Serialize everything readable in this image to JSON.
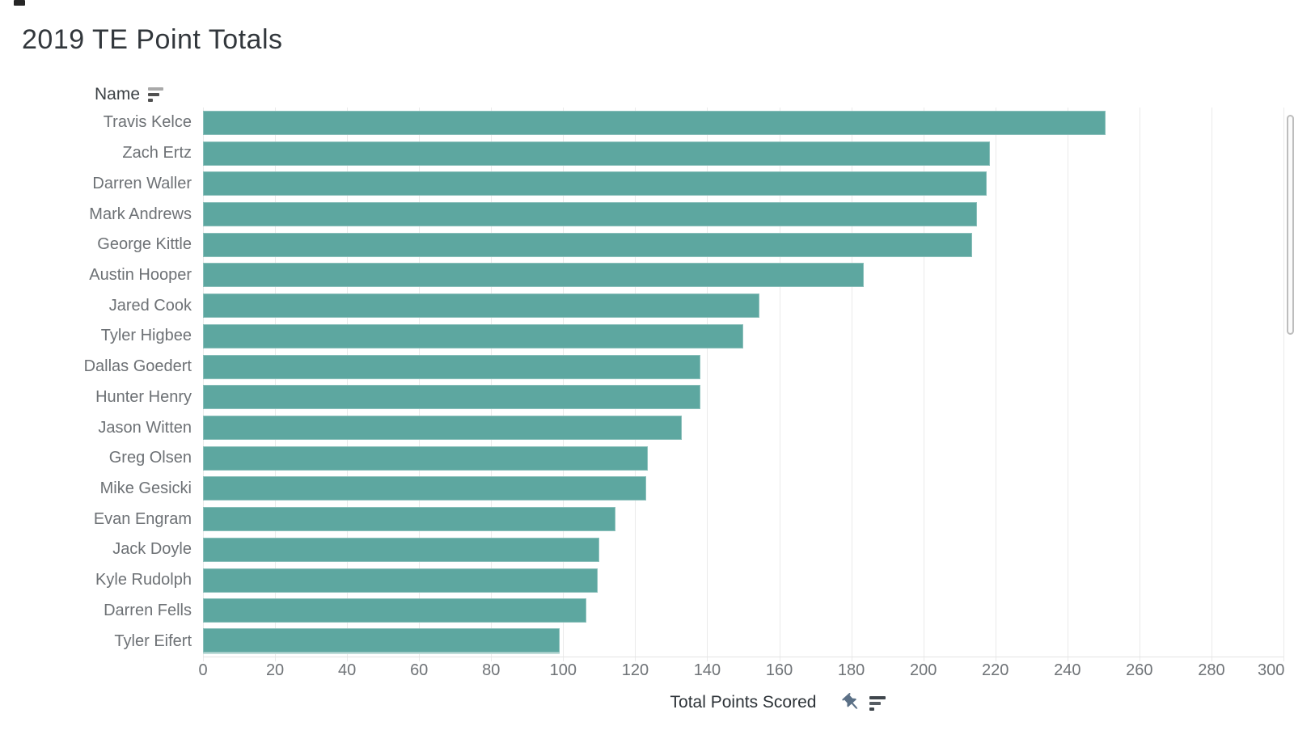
{
  "title": "2019 TE Point Totals",
  "row_header": {
    "label": "Name",
    "sort_icon": "sort-descending-icon"
  },
  "x_axis": {
    "label": "Total Points Scored",
    "ticks": [
      0,
      20,
      40,
      60,
      80,
      100,
      120,
      140,
      160,
      180,
      200,
      220,
      240,
      260,
      280,
      300
    ],
    "max": 300,
    "icons": [
      "pin-icon",
      "sort-descending-icon"
    ]
  },
  "colors": {
    "bar": "#5da7a0",
    "gridline": "#eaeaea",
    "title_text": "#32373c",
    "label_text": "#6d7175",
    "pin_icon": "#5b7086"
  },
  "scrollbar": {
    "visible": true,
    "side": "right"
  },
  "chart_data": {
    "type": "bar",
    "orientation": "horizontal",
    "title": "2019 TE Point Totals",
    "xlabel": "Total Points Scored",
    "ylabel": "Name",
    "xlim": [
      0,
      300
    ],
    "grid": true,
    "legend": false,
    "sort": "descending",
    "categories": [
      "Travis Kelce",
      "Zach Ertz",
      "Darren Waller",
      "Mark Andrews",
      "George Kittle",
      "Austin Hooper",
      "Jared Cook",
      "Tyler Higbee",
      "Dallas Goedert",
      "Hunter Henry",
      "Jason Witten",
      "Greg Olsen",
      "Mike Gesicki",
      "Evan Engram",
      "Jack Doyle",
      "Kyle Rudolph",
      "Darren Fells",
      "Tyler Eifert"
    ],
    "values": [
      250.5,
      218.5,
      217.5,
      215,
      213.5,
      183.5,
      154.5,
      150,
      138,
      138,
      133,
      123.5,
      123,
      114.5,
      110,
      109.5,
      106.5,
      99
    ]
  }
}
